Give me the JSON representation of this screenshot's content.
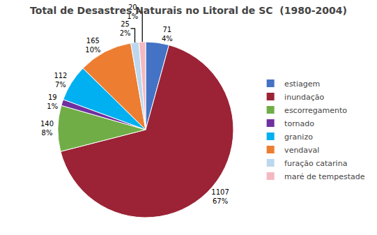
{
  "chart_data": {
    "type": "pie",
    "title": "Total de Desastres Naturais no Litoral de SC  (1980-2004)",
    "categories": [
      "estiagem",
      "inundação",
      "escorregamento",
      "tornado",
      "granizo",
      "vendaval",
      "furação catarina",
      "maré de tempestade"
    ],
    "values": [
      71,
      1107,
      140,
      19,
      112,
      165,
      25,
      20
    ],
    "value_labels": [
      "71\n4%",
      "1107\n67%",
      "140\n8%",
      "19\n1%",
      "112\n7%",
      "165\n10%",
      "25\n2%",
      "20\n1%"
    ],
    "colors": [
      "#4472C4",
      "#9B2335",
      "#70AD47",
      "#7030A0",
      "#00B0F0",
      "#ED7D31",
      "#BDD7EE",
      "#F4B8C1"
    ],
    "data_labels": true,
    "legend": "right"
  }
}
